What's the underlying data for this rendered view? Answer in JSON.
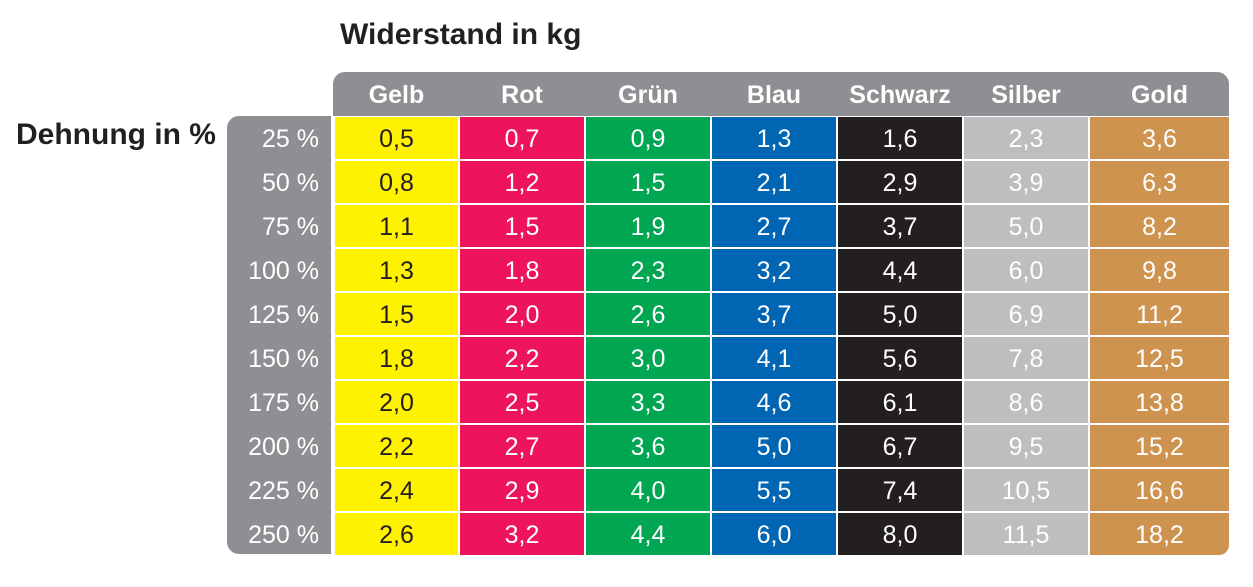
{
  "chart_data": {
    "type": "table",
    "title": "Widerstand in kg",
    "row_axis_label": "Dehnung in %",
    "columns": [
      {
        "name": "Gelb",
        "color": "#fff200",
        "text_color": "#231f20"
      },
      {
        "name": "Rot",
        "color": "#ed145b",
        "text_color": "#ffffff"
      },
      {
        "name": "Grün",
        "color": "#00a651",
        "text_color": "#ffffff"
      },
      {
        "name": "Blau",
        "color": "#0066b3",
        "text_color": "#ffffff"
      },
      {
        "name": "Schwarz",
        "color": "#231f20",
        "text_color": "#ffffff"
      },
      {
        "name": "Silber",
        "color": "#bcbec0",
        "text_color": "#ffffff"
      },
      {
        "name": "Gold",
        "color": "#cf9350",
        "text_color": "#ffffff"
      }
    ],
    "rows": [
      {
        "label": "25 %",
        "values": [
          "0,5",
          "0,7",
          "0,9",
          "1,3",
          "1,6",
          "2,3",
          "3,6"
        ]
      },
      {
        "label": "50 %",
        "values": [
          "0,8",
          "1,2",
          "1,5",
          "2,1",
          "2,9",
          "3,9",
          "6,3"
        ]
      },
      {
        "label": "75 %",
        "values": [
          "1,1",
          "1,5",
          "1,9",
          "2,7",
          "3,7",
          "5,0",
          "8,2"
        ]
      },
      {
        "label": "100 %",
        "values": [
          "1,3",
          "1,8",
          "2,3",
          "3,2",
          "4,4",
          "6,0",
          "9,8"
        ]
      },
      {
        "label": "125 %",
        "values": [
          "1,5",
          "2,0",
          "2,6",
          "3,7",
          "5,0",
          "6,9",
          "11,2"
        ]
      },
      {
        "label": "150 %",
        "values": [
          "1,8",
          "2,2",
          "3,0",
          "4,1",
          "5,6",
          "7,8",
          "12,5"
        ]
      },
      {
        "label": "175 %",
        "values": [
          "2,0",
          "2,5",
          "3,3",
          "4,6",
          "6,1",
          "8,6",
          "13,8"
        ]
      },
      {
        "label": "200 %",
        "values": [
          "2,2",
          "2,7",
          "3,6",
          "5,0",
          "6,7",
          "9,5",
          "15,2"
        ]
      },
      {
        "label": "225 %",
        "values": [
          "2,4",
          "2,9",
          "4,0",
          "5,5",
          "7,4",
          "10,5",
          "16,6"
        ]
      },
      {
        "label": "250 %",
        "values": [
          "2,6",
          "3,2",
          "4,4",
          "6,0",
          "8,0",
          "11,5",
          "18,2"
        ]
      }
    ]
  }
}
